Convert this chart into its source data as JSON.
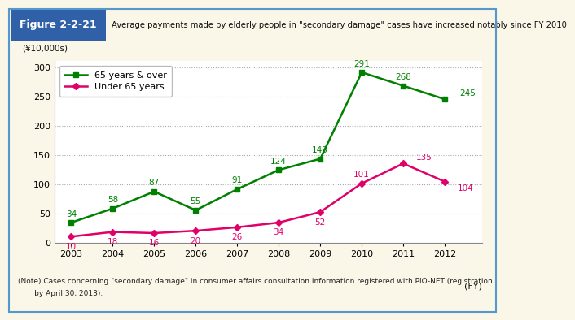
{
  "title_box": "Figure 2-2-21",
  "title_text": "Average payments made by elderly people in \"secondary damage\" cases have increased notably since FY 2010",
  "ylabel": "(¥10,000s)",
  "xlabel": "(FY)",
  "years": [
    2003,
    2004,
    2005,
    2006,
    2007,
    2008,
    2009,
    2010,
    2011,
    2012
  ],
  "series_65_over": [
    34,
    58,
    87,
    55,
    91,
    124,
    143,
    291,
    268,
    245
  ],
  "series_under65": [
    10,
    18,
    16,
    20,
    26,
    34,
    52,
    101,
    135,
    104
  ],
  "color_65_over": "#008000",
  "color_under65": "#e0006a",
  "ylim": [
    0,
    310
  ],
  "yticks": [
    0,
    50,
    100,
    150,
    200,
    250,
    300
  ],
  "legend_65_over": "65 years & over",
  "legend_under65": "Under 65 years",
  "note_line1": "(Note) Cases concerning \"secondary damage\" in consumer affairs consultation information registered with PIO-NET (registration",
  "note_line2": "       by April 30, 2013).",
  "bg_color": "#faf6e8",
  "plot_bg_color": "#ffffff",
  "header_bg_color": "#3060a8",
  "header_text_color": "#ffffff",
  "border_color": "#5599cc"
}
